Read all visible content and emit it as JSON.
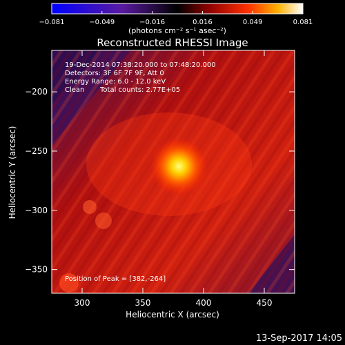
{
  "chart_data": {
    "type": "heatmap",
    "title": "Reconstructed RHESSI Image",
    "xlabel": "Heliocentric X (arcsec)",
    "ylabel": "Heliocentric Y (arcsec)",
    "xlim": [
      275,
      475
    ],
    "ylim": [
      -370,
      -165
    ],
    "x_ticks": [
      300,
      350,
      400,
      450
    ],
    "y_ticks": [
      -200,
      -250,
      -300,
      -350
    ],
    "colorbar": {
      "min": -0.081,
      "max": 0.081,
      "tick_labels": [
        "-0.081",
        "-0.049",
        "-0.016",
        "0.016",
        "0.049",
        "0.081"
      ],
      "unit_label": "(photons cm⁻² s⁻¹ asec⁻²)"
    },
    "annotations": {
      "time_range": "19-Dec-2014 07:38:20.000 to 07:48:20.000",
      "detectors": "Detectors: 3F 6F 7F 9F, Att 0",
      "energy_range": "Energy Range: 6.0 - 12.0 keV",
      "method": "Clean",
      "total_counts": "Total counts: 2.77E+05",
      "peak_position": "Position of Peak = [382,-264]"
    },
    "peak": {
      "x": 382,
      "y": -264,
      "value": 0.081
    },
    "footer_timestamp": "13-Sep-2017 14:05"
  }
}
